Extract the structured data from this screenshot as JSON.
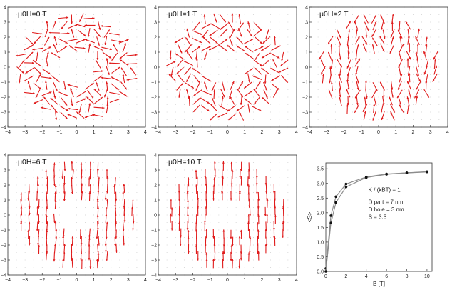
{
  "chart_data": [
    {
      "type": "scatter",
      "title": "μ0H=0 T",
      "field_T": 0,
      "xlim": [
        -4,
        4
      ],
      "ylim": [
        -4,
        4
      ],
      "xticks": [
        -4,
        -3,
        -2,
        -1,
        0,
        1,
        2,
        3,
        4
      ],
      "yticks": [
        -4,
        -3,
        -2,
        -1,
        0,
        1,
        2,
        3,
        4
      ],
      "grid": "dotted",
      "spin_alignment": 0.0,
      "description_values": {
        "arrow_color": "#e01b1b"
      }
    },
    {
      "type": "scatter",
      "title": "μ0H=1 T",
      "field_T": 1,
      "xlim": [
        -4,
        4
      ],
      "ylim": [
        -4,
        4
      ],
      "xticks": [
        -4,
        -3,
        -2,
        -1,
        0,
        1,
        2,
        3,
        4
      ],
      "yticks": [
        -4,
        -3,
        -2,
        -1,
        0,
        1,
        2,
        3,
        4
      ],
      "grid": "dotted",
      "spin_alignment": 0.55
    },
    {
      "type": "scatter",
      "title": "μ0H=2 T",
      "field_T": 2,
      "xlim": [
        -4,
        4
      ],
      "ylim": [
        -4,
        4
      ],
      "xticks": [
        -4,
        -3,
        -2,
        -1,
        0,
        1,
        2,
        3,
        4
      ],
      "yticks": [
        -4,
        -3,
        -2,
        -1,
        0,
        1,
        2,
        3,
        4
      ],
      "grid": "dotted",
      "spin_alignment": 0.8
    },
    {
      "type": "scatter",
      "title": "μ0H=6 T",
      "field_T": 6,
      "xlim": [
        -4,
        4
      ],
      "ylim": [
        -4,
        4
      ],
      "xticks": [
        -4,
        -3,
        -2,
        -1,
        0,
        1,
        2,
        3,
        4
      ],
      "yticks": [
        -4,
        -3,
        -2,
        -1,
        0,
        1,
        2,
        3,
        4
      ],
      "grid": "dotted",
      "spin_alignment": 0.95
    },
    {
      "type": "scatter",
      "title": "μ0H=10 T",
      "field_T": 10,
      "xlim": [
        -4,
        4
      ],
      "ylim": [
        -4,
        4
      ],
      "xticks": [
        -4,
        -3,
        -2,
        -1,
        0,
        1,
        2,
        3,
        4
      ],
      "yticks": [
        -4,
        -3,
        -2,
        -1,
        0,
        1,
        2,
        3,
        4
      ],
      "grid": "dotted",
      "spin_alignment": 0.98
    },
    {
      "type": "line",
      "xlabel": "B [T]",
      "ylabel": "<S>",
      "xlim": [
        0,
        10.5
      ],
      "ylim": [
        0,
        3.7
      ],
      "xticks": [
        0,
        2,
        4,
        6,
        8,
        10
      ],
      "yticks": [
        0.0,
        0.5,
        1.0,
        1.5,
        2.0,
        2.5,
        3.0,
        3.5
      ],
      "annotations": [
        "K / (kBT) = 1",
        "D part = 7 nm",
        "D hole = 3 nm",
        "S = 3.5"
      ],
      "series": [
        {
          "x": [
            0,
            0.5,
            1,
            2,
            4,
            6,
            8,
            10
          ],
          "y": [
            0.1,
            1.9,
            2.55,
            2.98,
            3.22,
            3.32,
            3.36,
            3.4
          ]
        },
        {
          "x": [
            0,
            0.5,
            1,
            2,
            4,
            6,
            8,
            10
          ],
          "y": [
            0.0,
            1.65,
            2.35,
            2.88,
            3.2,
            3.31,
            3.36,
            3.39
          ]
        }
      ]
    }
  ],
  "colors": {
    "arrow": "#e01b1b",
    "axis": "#333333",
    "grid": "#c8c8c8",
    "curve": "#8c8c8c"
  }
}
